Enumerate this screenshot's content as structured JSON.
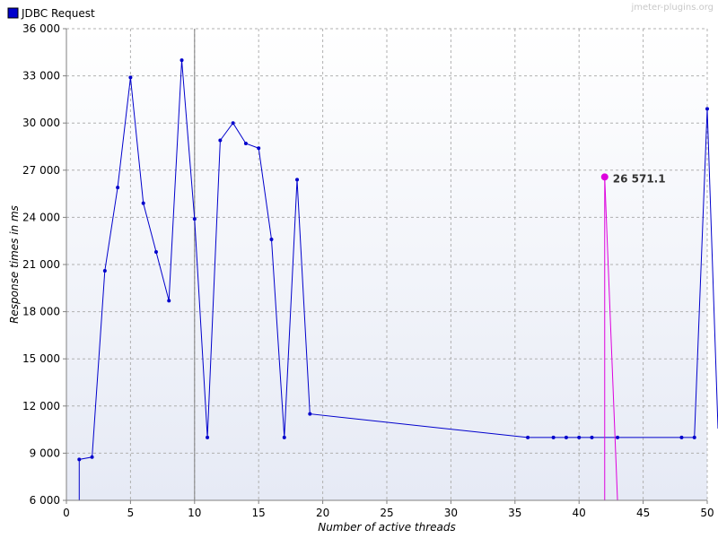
{
  "watermark": "jmeter-plugins.org",
  "legend": {
    "label": "JDBC Request",
    "color": "#0000cc"
  },
  "chart_data": {
    "type": "line",
    "title": "",
    "xlabel": "Number of active threads",
    "ylabel": "Response times in ms",
    "xlim": [
      0,
      50
    ],
    "ylim": [
      6000,
      36000
    ],
    "x_ticks": [
      0,
      5,
      10,
      15,
      20,
      25,
      30,
      35,
      40,
      45,
      50
    ],
    "y_ticks": [
      6000,
      9000,
      12000,
      15000,
      18000,
      21000,
      24000,
      27000,
      30000,
      33000,
      36000
    ],
    "y_tick_labels": [
      "6 000",
      "9 000",
      "12 000",
      "15 000",
      "18 000",
      "21 000",
      "24 000",
      "27 000",
      "30 000",
      "33 000",
      "36 000"
    ],
    "x_tick_labels": [
      "0",
      "5",
      "10",
      "15",
      "20",
      "25",
      "30",
      "35",
      "40",
      "45",
      "50"
    ],
    "grid": true,
    "legend_position": "top-left",
    "series": [
      {
        "name": "JDBC Request",
        "color": "#0000cc",
        "points": [
          [
            1,
            8600
          ],
          [
            2,
            8750
          ],
          [
            3,
            20600
          ],
          [
            4,
            25900
          ],
          [
            5,
            32900
          ],
          [
            6,
            24900
          ],
          [
            7,
            21800
          ],
          [
            8,
            18700
          ],
          [
            9,
            34000
          ],
          [
            10,
            23900
          ],
          [
            11,
            10000
          ],
          [
            12,
            28900
          ],
          [
            13,
            30000
          ],
          [
            14,
            28700
          ],
          [
            15,
            28400
          ],
          [
            16,
            22600
          ],
          [
            17,
            10000
          ],
          [
            18,
            26400
          ],
          [
            19,
            11500
          ],
          [
            36,
            10000
          ],
          [
            38,
            10000
          ],
          [
            39,
            10000
          ],
          [
            40,
            10000
          ],
          [
            41,
            10000
          ],
          [
            43,
            10000
          ],
          [
            48,
            10000
          ],
          [
            49,
            10000
          ],
          [
            50,
            30900
          ]
        ]
      }
    ],
    "highlight": {
      "color": "#dd00dd",
      "point": [
        42,
        26571.1
      ],
      "label": "26 571.1"
    },
    "vertical_marker_x": 10
  }
}
